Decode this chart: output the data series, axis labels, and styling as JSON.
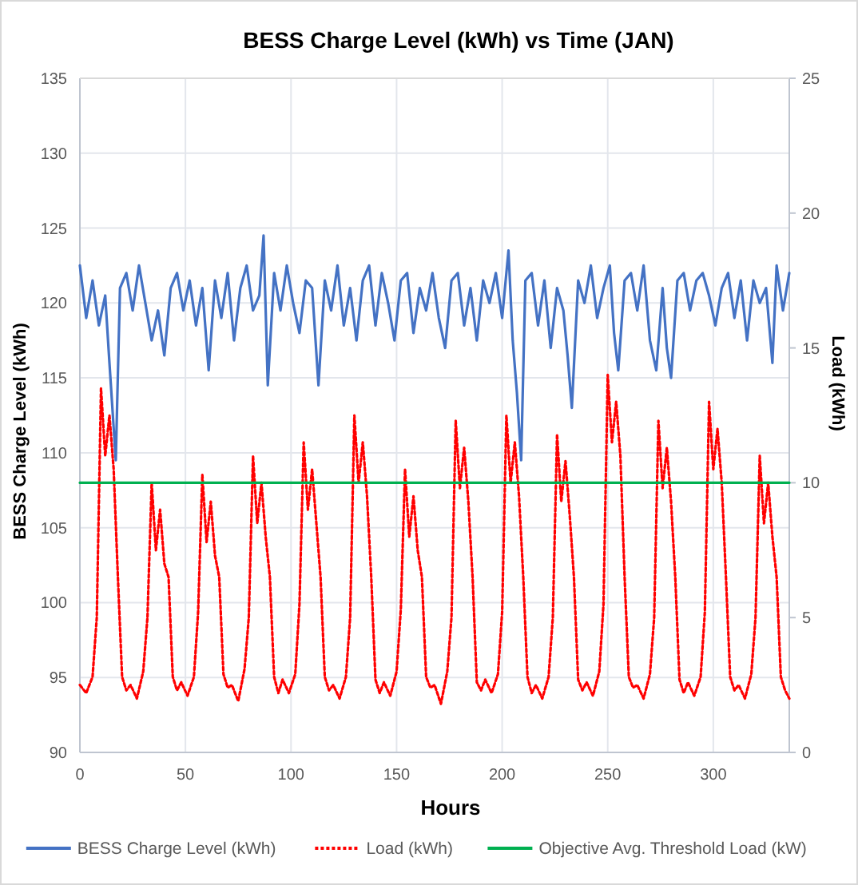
{
  "chart_data": {
    "type": "line",
    "title": "BESS Charge Level (kWh) vs Time (JAN)",
    "xlabel": "Hours",
    "ylabel": "BESS Charge Level (kWh)",
    "y2label": "Load (kWh)",
    "xlim": [
      0,
      336
    ],
    "xticks": [
      0,
      50,
      100,
      150,
      200,
      250,
      300
    ],
    "ylim": [
      90,
      135
    ],
    "yticks": [
      90,
      95,
      100,
      105,
      110,
      115,
      120,
      125,
      130,
      135
    ],
    "y2lim": [
      0,
      25
    ],
    "y2ticks": [
      0,
      5,
      10,
      15,
      20,
      25
    ],
    "grid": true,
    "legend": "bottom",
    "marker": "none",
    "series": [
      {
        "name": "BESS Charge Level (kWh)",
        "color": "#4472c4",
        "line_style": "solid",
        "x": [
          0,
          3,
          6,
          9,
          12,
          14,
          17,
          19,
          22,
          25,
          28,
          31,
          34,
          37,
          40,
          43,
          46,
          49,
          52,
          55,
          58,
          61,
          64,
          67,
          70,
          73,
          76,
          79,
          82,
          85,
          87,
          89,
          92,
          95,
          98,
          101,
          104,
          107,
          110,
          113,
          116,
          119,
          122,
          125,
          128,
          131,
          134,
          137,
          140,
          143,
          146,
          149,
          152,
          155,
          158,
          161,
          164,
          167,
          170,
          173,
          176,
          179,
          182,
          185,
          188,
          191,
          194,
          197,
          200,
          203,
          205,
          207,
          209,
          211,
          214,
          217,
          220,
          223,
          226,
          229,
          231,
          233,
          236,
          239,
          242,
          245,
          248,
          251,
          253,
          255,
          258,
          261,
          264,
          267,
          270,
          273,
          276,
          278,
          280,
          283,
          286,
          289,
          292,
          295,
          298,
          301,
          304,
          307,
          310,
          313,
          316,
          319,
          322,
          325,
          328,
          330,
          333,
          336
        ],
        "values": [
          122.5,
          119,
          121.5,
          118.5,
          120.5,
          116,
          109.5,
          121,
          122,
          119.5,
          122.5,
          120,
          117.5,
          119.5,
          116.5,
          121,
          122,
          119.5,
          121.5,
          118.5,
          121,
          115.5,
          121.5,
          119,
          122,
          117.5,
          121,
          122.5,
          119.5,
          120.5,
          124.5,
          114.5,
          122,
          119.5,
          122.5,
          120,
          118,
          121.5,
          121,
          114.5,
          121.5,
          119.5,
          122.5,
          118.5,
          121,
          117.5,
          121.5,
          122.5,
          118.5,
          122,
          120,
          117.5,
          121.5,
          122,
          118,
          121,
          119.5,
          122,
          119,
          117,
          121.5,
          122,
          118.5,
          121,
          117.5,
          121.5,
          120,
          122,
          119,
          123.5,
          117.5,
          114,
          109.5,
          121.5,
          122,
          118.5,
          121.5,
          117,
          121,
          119.5,
          116.5,
          113,
          121.5,
          120,
          122.5,
          119,
          121,
          122.5,
          118,
          115.5,
          121.5,
          122,
          119.5,
          122.5,
          117.5,
          115.5,
          121,
          117,
          115,
          121.5,
          122,
          119.5,
          121.5,
          122,
          120.5,
          118.5,
          121,
          122,
          119,
          121.5,
          117.5,
          121.5,
          120,
          121,
          116,
          122.5,
          119.5,
          122
        ]
      },
      {
        "name": "Load (kWh)",
        "color": "#ff0000",
        "line_style": "dotted",
        "axis": "y2",
        "x": [
          0,
          3,
          6,
          8,
          10,
          12,
          14,
          16,
          18,
          20,
          22,
          24,
          27,
          30,
          32,
          34,
          36,
          38,
          40,
          42,
          44,
          46,
          48,
          51,
          54,
          56,
          58,
          60,
          62,
          64,
          66,
          68,
          70,
          72,
          75,
          78,
          80,
          82,
          84,
          86,
          88,
          90,
          92,
          94,
          96,
          99,
          102,
          104,
          106,
          108,
          110,
          112,
          114,
          116,
          118,
          120,
          123,
          126,
          128,
          130,
          132,
          134,
          136,
          138,
          140,
          142,
          144,
          147,
          150,
          152,
          154,
          156,
          158,
          160,
          162,
          164,
          166,
          168,
          171,
          174,
          176,
          178,
          180,
          182,
          184,
          186,
          188,
          190,
          192,
          195,
          198,
          200,
          202,
          204,
          206,
          208,
          210,
          212,
          214,
          216,
          219,
          222,
          224,
          226,
          228,
          230,
          232,
          234,
          236,
          238,
          240,
          243,
          246,
          248,
          250,
          252,
          254,
          256,
          258,
          260,
          262,
          264,
          267,
          270,
          272,
          274,
          276,
          278,
          280,
          282,
          284,
          286,
          288,
          291,
          294,
          296,
          298,
          300,
          302,
          304,
          306,
          308,
          310,
          312,
          315,
          318,
          320,
          322,
          324,
          326,
          328,
          330,
          332,
          334,
          336
        ],
        "values": [
          2.5,
          2.2,
          2.8,
          5,
          13.5,
          11,
          12.5,
          10.5,
          6.5,
          2.8,
          2.3,
          2.5,
          2.0,
          3.0,
          5,
          10,
          7.5,
          9,
          7,
          6.5,
          2.8,
          2.3,
          2.6,
          2.1,
          2.8,
          5.2,
          10.3,
          7.8,
          9.3,
          7.3,
          6.5,
          2.9,
          2.4,
          2.5,
          1.9,
          3.1,
          5,
          11,
          8.5,
          10,
          8,
          6.5,
          2.8,
          2.2,
          2.7,
          2.2,
          2.9,
          5.5,
          11.5,
          9,
          10.5,
          8.5,
          6.5,
          2.8,
          2.3,
          2.5,
          2.0,
          2.8,
          5,
          12.5,
          10,
          11.5,
          9.5,
          6.5,
          2.7,
          2.2,
          2.6,
          2.1,
          3.0,
          5.3,
          10.5,
          8,
          9.5,
          7.5,
          6.5,
          2.8,
          2.4,
          2.5,
          1.8,
          3.0,
          5,
          12.3,
          9.8,
          11.3,
          9.3,
          6.5,
          2.6,
          2.3,
          2.7,
          2.2,
          2.9,
          5.2,
          12.5,
          10,
          11.5,
          9.5,
          6.5,
          2.8,
          2.2,
          2.5,
          2.0,
          2.8,
          5,
          11.8,
          9.3,
          10.8,
          8.8,
          6.5,
          2.7,
          2.3,
          2.6,
          2.1,
          3.0,
          5.5,
          14,
          11.5,
          13,
          11,
          6.5,
          2.8,
          2.4,
          2.5,
          2.0,
          2.9,
          5,
          12.3,
          9.8,
          11.3,
          9.3,
          6.5,
          2.7,
          2.2,
          2.6,
          2.1,
          2.8,
          5.2,
          13,
          10.5,
          12,
          10,
          6.5,
          2.8,
          2.3,
          2.5,
          2.0,
          2.9,
          5,
          11,
          8.5,
          10,
          8,
          6.5,
          2.8,
          2.3,
          2.0
        ]
      },
      {
        "name": "Objective Avg. Threshold Load (kW)",
        "color": "#00b050",
        "line_style": "solid",
        "axis": "y2",
        "x": [
          0,
          336
        ],
        "values": [
          10,
          10
        ]
      }
    ]
  }
}
